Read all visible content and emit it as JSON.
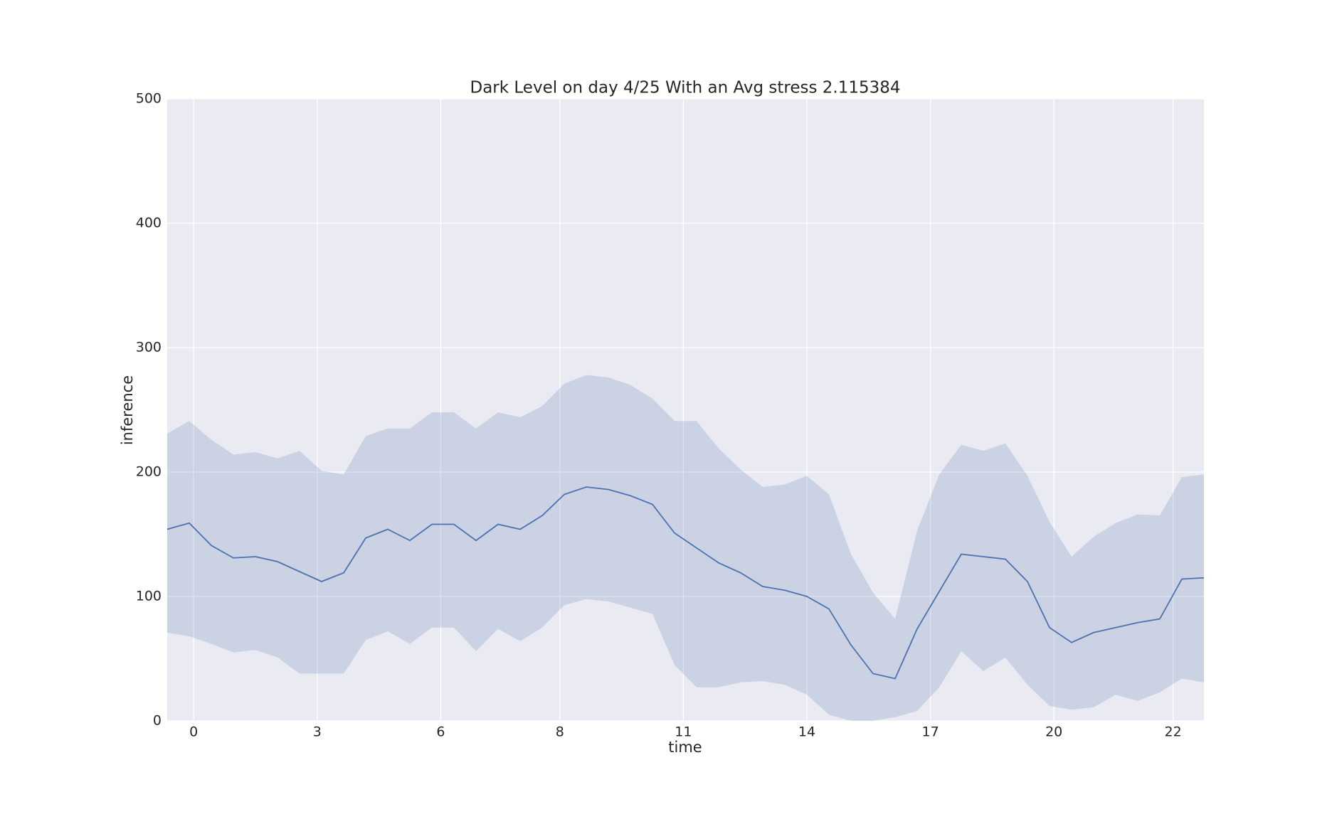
{
  "chart_data": {
    "type": "line",
    "title": "Dark Level on day 4/25 With an Avg stress 2.115384",
    "xlabel": "time",
    "ylabel": "inference",
    "x": [
      -0.5,
      0,
      0.5,
      1,
      1.5,
      2,
      2.5,
      3,
      3.5,
      4,
      4.5,
      5,
      5.5,
      6,
      6.5,
      7,
      7.5,
      8,
      8.5,
      9,
      9.5,
      10,
      10.5,
      11,
      11.5,
      12,
      12.5,
      13,
      13.5,
      14,
      14.5,
      15,
      15.5,
      16,
      16.5,
      17,
      17.5,
      18,
      18.5,
      19,
      19.5,
      20,
      20.5,
      21,
      21.5,
      22,
      22.5,
      23
    ],
    "series": [
      {
        "color": "#4c72b0",
        "values": [
          154,
          159,
          141,
          131,
          132,
          128,
          120,
          112,
          119,
          147,
          154,
          145,
          158,
          158,
          145,
          158,
          154,
          165,
          182,
          188,
          186,
          181,
          174,
          151,
          139,
          127,
          119,
          108,
          105,
          100,
          90,
          61,
          38,
          34,
          74,
          104,
          134,
          132,
          130,
          112,
          75,
          63,
          71,
          75,
          79,
          82,
          114,
          115
        ],
        "upper": [
          231,
          241,
          226,
          214,
          216,
          211,
          217,
          201,
          198,
          229,
          235,
          235,
          248,
          248,
          235,
          248,
          244,
          253,
          271,
          278,
          276,
          270,
          259,
          241,
          241,
          219,
          202,
          188,
          190,
          197,
          182,
          134,
          103,
          82,
          153,
          198,
          222,
          217,
          223,
          197,
          160,
          132,
          148,
          159,
          166,
          165,
          196,
          198
        ],
        "lower": [
          71,
          68,
          62,
          55,
          57,
          51,
          38,
          38,
          38,
          65,
          72,
          62,
          75,
          75,
          56,
          74,
          64,
          75,
          93,
          98,
          96,
          91,
          86,
          45,
          27,
          27,
          31,
          32,
          29,
          21,
          5,
          0,
          0,
          3,
          8,
          27,
          56,
          40,
          51,
          29,
          12,
          9,
          11,
          21,
          16,
          23,
          34,
          31
        ]
      }
    ],
    "xlim": [
      -0.5,
      23
    ],
    "ylim": [
      0,
      500
    ],
    "xticks": [
      {
        "value": 0.1,
        "label": "0"
      },
      {
        "value": 2.9,
        "label": "3"
      },
      {
        "value": 5.7,
        "label": "6"
      },
      {
        "value": 8.4,
        "label": "8"
      },
      {
        "value": 11.2,
        "label": "11"
      },
      {
        "value": 14.0,
        "label": "14"
      },
      {
        "value": 16.8,
        "label": "17"
      },
      {
        "value": 19.6,
        "label": "20"
      },
      {
        "value": 22.3,
        "label": "22"
      }
    ],
    "yticks": [
      0,
      100,
      200,
      300,
      400,
      500
    ],
    "grid": true
  }
}
